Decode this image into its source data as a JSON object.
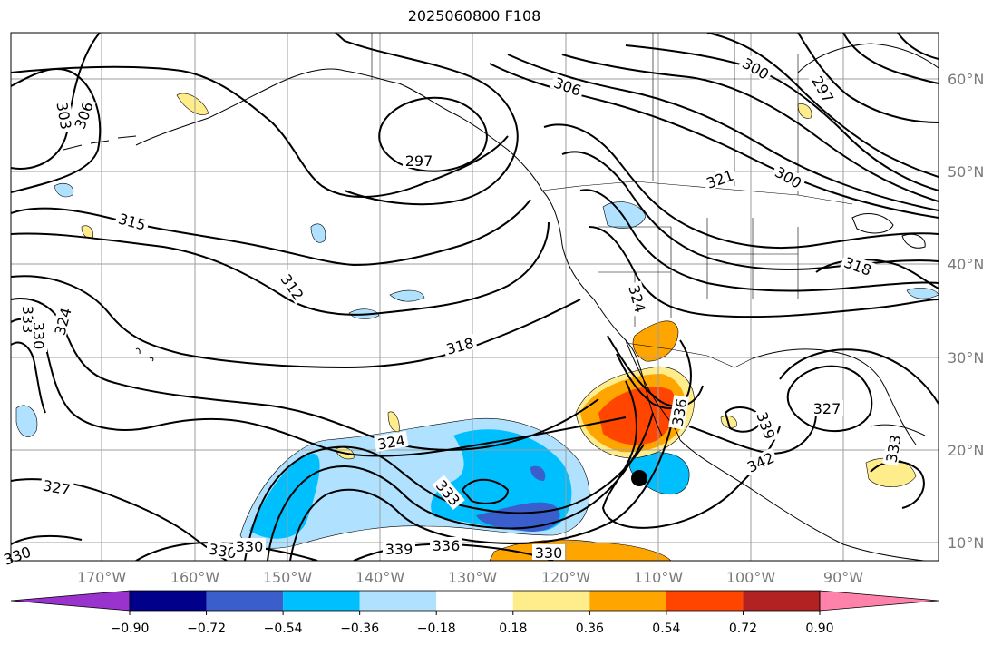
{
  "title": "2025060800 F108",
  "lon_ticks": [
    "170°W",
    "160°W",
    "150°W",
    "140°W",
    "130°W",
    "120°W",
    "110°W",
    "100°W",
    "90°W"
  ],
  "lat_ticks": [
    "60°N",
    "50°N",
    "40°N",
    "30°N",
    "20°N",
    "10°N"
  ],
  "colorbar": {
    "ticks": [
      "−0.90",
      "−0.72",
      "−0.54",
      "−0.36",
      "−0.18",
      "0.18",
      "0.36",
      "0.54",
      "0.72",
      "0.90"
    ],
    "colors": [
      "#9a32cd",
      "#00008b",
      "#3a5fcd",
      "#00bfff",
      "#b0e2ff",
      "#ffffff",
      "#ffec8b",
      "#ffa500",
      "#ff4500",
      "#b22222",
      "#ff82ab"
    ]
  },
  "contour_labels": [
    "303",
    "306",
    "297",
    "300",
    "297",
    "306",
    "321",
    "300",
    "315",
    "312",
    "318",
    "324",
    "318",
    "333",
    "330",
    "324",
    "327",
    "324",
    "333",
    "327",
    "330",
    "339",
    "336",
    "339",
    "342",
    "330",
    "333",
    "336",
    "330",
    "330"
  ]
}
